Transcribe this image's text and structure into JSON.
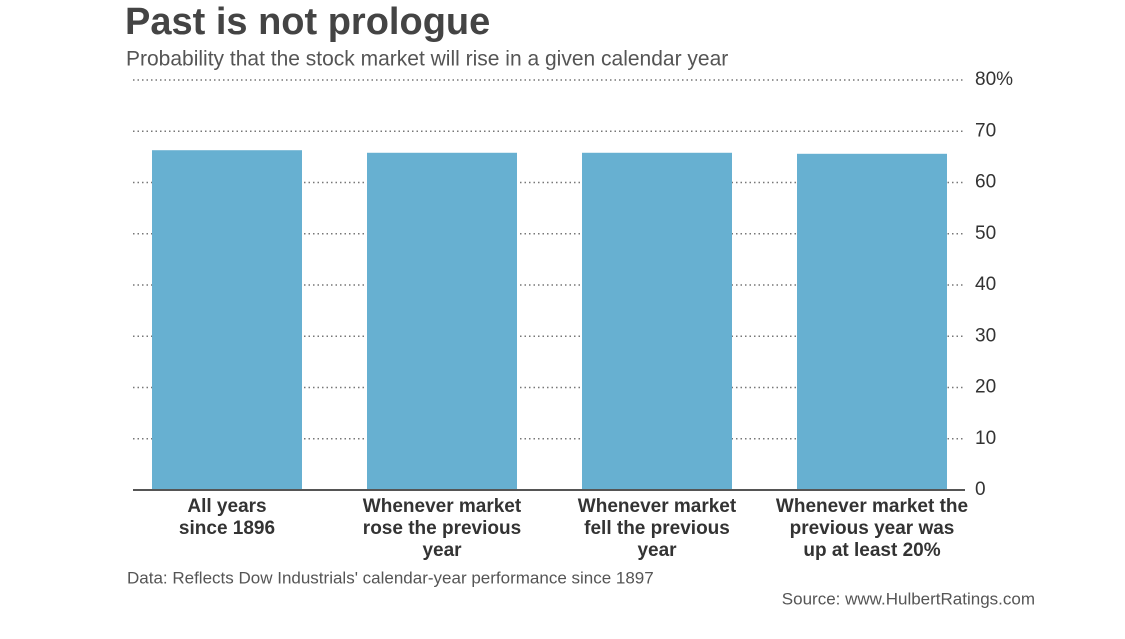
{
  "chart_data": {
    "type": "bar",
    "title": "Past is not prologue",
    "subtitle": "Probability that the stock market will rise in a given calendar year",
    "categories": [
      "All years\nsince 1896",
      "Whenever market\nrose the previous\nyear",
      "Whenever market\nfell the previous\nyear",
      "Whenever market the\nprevious year was\nup at least 20%"
    ],
    "values": [
      66.3,
      65.8,
      65.8,
      65.6
    ],
    "color": "#67b0d1",
    "ylim": [
      0,
      80
    ],
    "yticks": [
      0,
      10,
      20,
      30,
      40,
      50,
      60,
      70,
      {
        "value": 80,
        "label": "80%"
      }
    ],
    "grid": true,
    "note": "Data: Reflects Dow Industrials' calendar-year performance since 1897",
    "source": "Source: www.HulbertRatings.com"
  }
}
